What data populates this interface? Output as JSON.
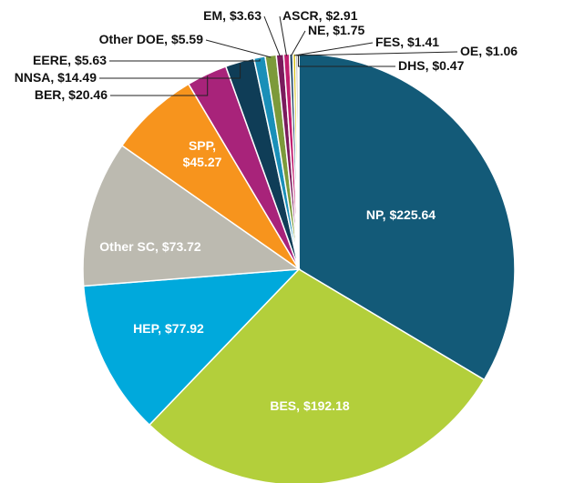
{
  "chart_data": {
    "type": "pie",
    "categories": [
      "NP",
      "BES",
      "HEP",
      "Other SC",
      "SPP",
      "BER",
      "NNSA",
      "EERE",
      "Other DOE",
      "EM",
      "ASCR",
      "NE",
      "FES",
      "OE",
      "DHS"
    ],
    "values": [
      225.64,
      192.18,
      77.92,
      73.72,
      45.27,
      20.46,
      14.49,
      5.63,
      5.59,
      3.63,
      2.91,
      1.75,
      1.41,
      1.06,
      0.47
    ],
    "value_labels": [
      "$225.64",
      "$192.18",
      "$77.92",
      "$73.72",
      "$45.27",
      "$20.46",
      "$14.49",
      "$5.63",
      "$5.59",
      "$3.63",
      "$2.91",
      "$1.75",
      "$1.41",
      "$1.06",
      "$0.47"
    ],
    "colors": [
      "#135a78",
      "#b3cf3b",
      "#00a9dc",
      "#bcbab0",
      "#f7941d",
      "#a8237a",
      "#0f3d57",
      "#1a8fb8",
      "#7c9a3a",
      "#7a1a5c",
      "#c11d6e",
      "#2a4e6e",
      "#d9c21a",
      "#8c8c8c",
      "#f4a340"
    ]
  }
}
